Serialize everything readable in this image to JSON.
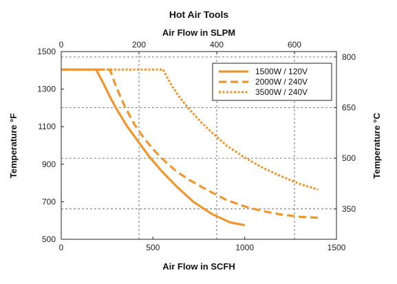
{
  "chart_data": {
    "type": "line",
    "title": "Hot Air Tools",
    "xlabel": "Air Flow in SCFH",
    "x2label": "Air Flow in SLPM",
    "ylabel": "Temperature °F",
    "y2label": "Temperature °C",
    "xlim": [
      0,
      1500
    ],
    "ylim": [
      500,
      1500
    ],
    "x2lim": [
      0,
      708
    ],
    "y2lim": [
      260,
      816
    ],
    "x_ticks": [
      0,
      500,
      1000,
      1500
    ],
    "y_ticks": [
      500,
      700,
      900,
      1100,
      1300,
      1500
    ],
    "x2_ticks": [
      0,
      200,
      400,
      600
    ],
    "y2_ticks": [
      350,
      500,
      650,
      800
    ],
    "x_tick_labels": [
      "0",
      "500",
      "1000",
      "1500"
    ],
    "y_tick_labels": [
      "500",
      "700",
      "900",
      "1100",
      "1300",
      "1500"
    ],
    "x2_tick_labels": [
      "0",
      "200",
      "400",
      "600"
    ],
    "y2_tick_labels": [
      "350",
      "500",
      "650",
      "800"
    ],
    "grid": "dashed at secondary-axis ticks",
    "legend_position": "top-right",
    "color": "#F0962F",
    "series": [
      {
        "name": "1500W / 120V",
        "style": "solid",
        "x": [
          0,
          190,
          230,
          270,
          310,
          360,
          420,
          480,
          550,
          630,
          720,
          820,
          920,
          1000
        ],
        "y": [
          1404,
          1404,
          1330,
          1250,
          1180,
          1100,
          1020,
          940,
          860,
          780,
          700,
          635,
          590,
          575
        ]
      },
      {
        "name": "2000W / 240V",
        "style": "dashed",
        "x": [
          0,
          265,
          300,
          350,
          400,
          450,
          500,
          560,
          630,
          700,
          800,
          900,
          1000,
          1100,
          1200,
          1300,
          1400
        ],
        "y": [
          1404,
          1404,
          1310,
          1200,
          1110,
          1040,
          980,
          920,
          860,
          815,
          760,
          710,
          675,
          650,
          632,
          620,
          615
        ]
      },
      {
        "name": "3500W / 240V",
        "style": "dotted",
        "x": [
          0,
          555,
          600,
          650,
          700,
          760,
          820,
          900,
          1000,
          1100,
          1200,
          1300,
          1400
        ],
        "y": [
          1404,
          1404,
          1320,
          1250,
          1190,
          1125,
          1070,
          1000,
          935,
          880,
          835,
          795,
          765
        ]
      }
    ]
  }
}
